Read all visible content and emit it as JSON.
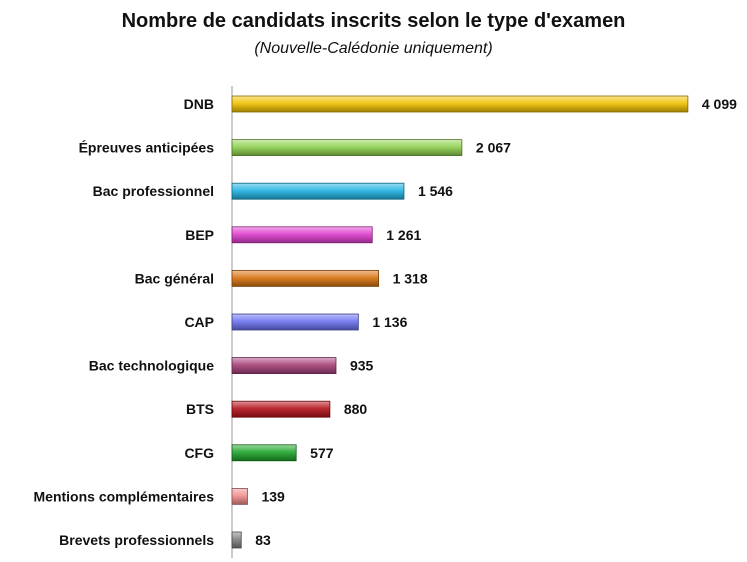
{
  "chart_data": {
    "type": "bar",
    "orientation": "horizontal",
    "title": "Nombre de candidats inscrits selon le type d'examen",
    "subtitle": "(Nouvelle-Calédonie uniquement)",
    "xlabel": "",
    "ylabel": "",
    "xlim": [
      0,
      4100
    ],
    "grid": false,
    "legend": "none",
    "categories": [
      "DNB",
      "Épreuves anticipées",
      "Bac professionnel",
      "BEP",
      "Bac général",
      "CAP",
      "Bac technologique",
      "BTS",
      "CFG",
      "Mentions complémentaires",
      "Brevets professionnels"
    ],
    "values": [
      4099,
      2067,
      1546,
      1261,
      1318,
      1136,
      935,
      880,
      577,
      139,
      83
    ],
    "value_labels": [
      "4 099",
      "2 067",
      "1 546",
      "1 261",
      "1 318",
      "1 136",
      "935",
      "880",
      "577",
      "139",
      "83"
    ],
    "colors": [
      "#F2C200",
      "#8FD14F",
      "#1FB2E3",
      "#E03ECF",
      "#D8730F",
      "#6B73F0",
      "#A8407A",
      "#B5121B",
      "#1FA52A",
      "#F28C8C",
      "#808080"
    ]
  }
}
